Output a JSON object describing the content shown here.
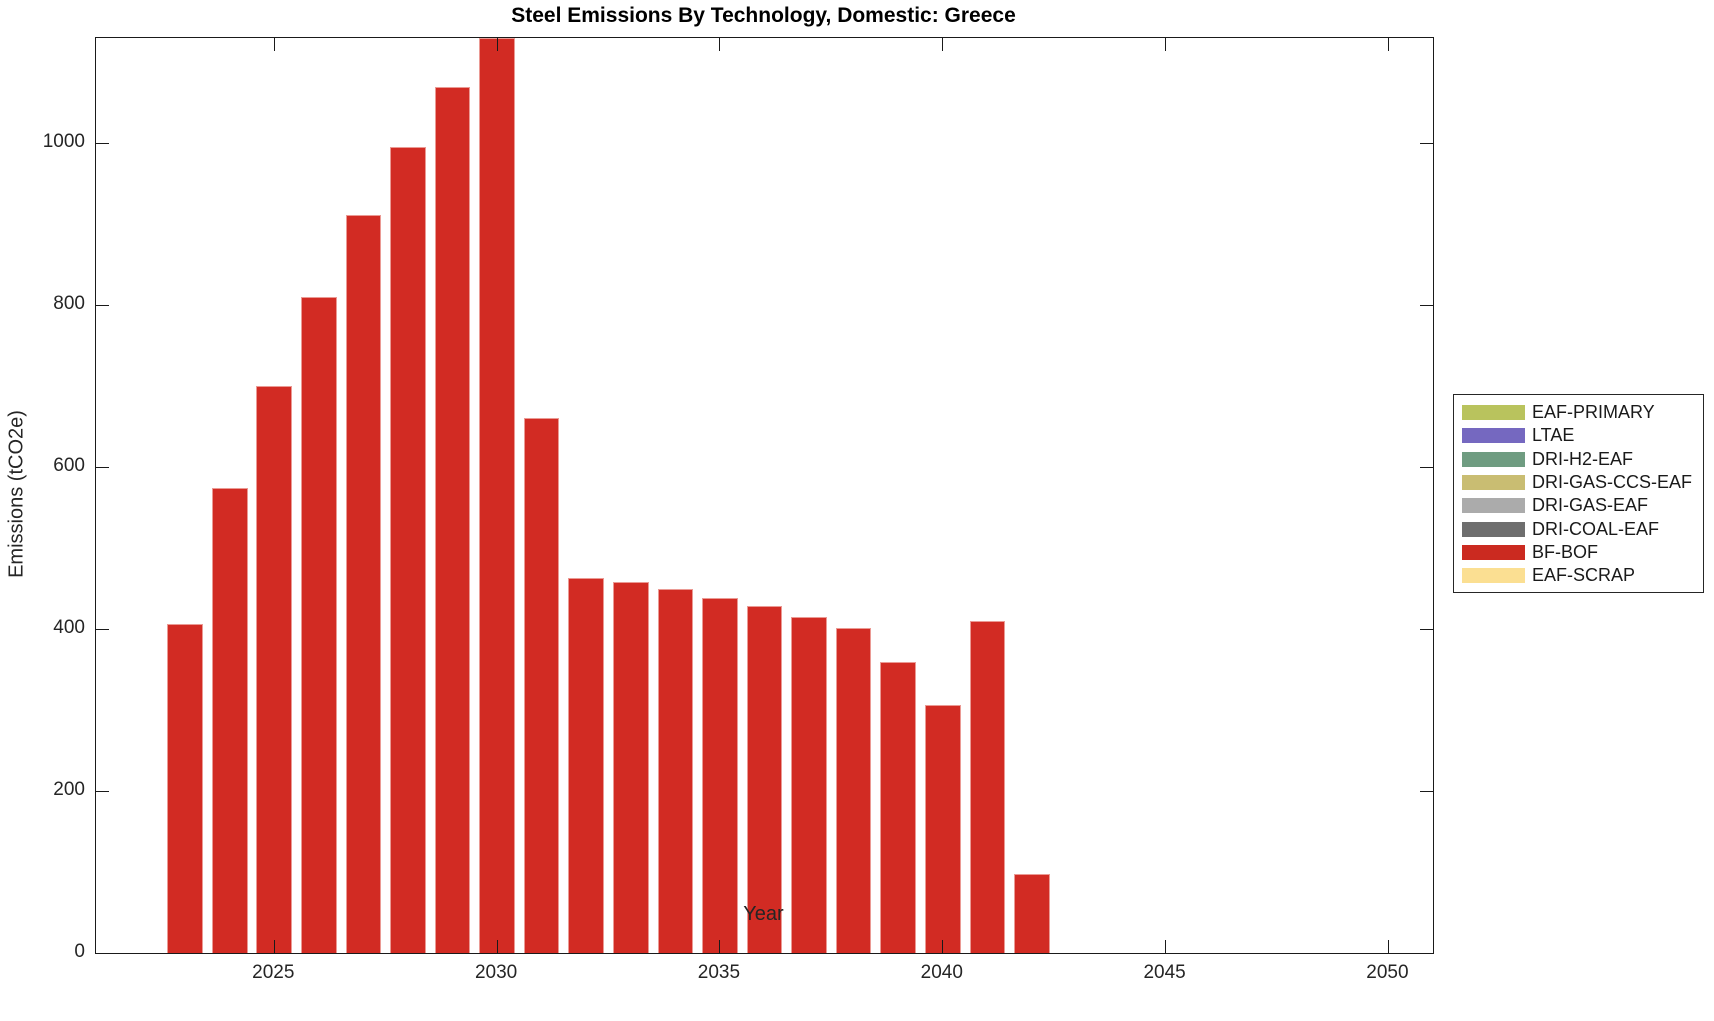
{
  "chart_data": {
    "type": "bar",
    "stacked": true,
    "title": "Steel Emissions By Technology, Domestic: Greece",
    "xlabel": "Year",
    "ylabel": "Emissions (tCO2e)",
    "xlim": [
      2021,
      2051
    ],
    "ylim": [
      0,
      1130
    ],
    "xticks": [
      2025,
      2030,
      2035,
      2040,
      2045,
      2050
    ],
    "yticks": [
      0,
      200,
      400,
      600,
      800,
      1000
    ],
    "grid": false,
    "bar_width_ratio": 0.8,
    "x": [
      2023,
      2024,
      2025,
      2026,
      2027,
      2028,
      2029,
      2030,
      2031,
      2032,
      2033,
      2034,
      2035,
      2036,
      2037,
      2038,
      2039,
      2040,
      2041,
      2042
    ],
    "series": [
      {
        "name": "BF-BOF",
        "color": "#d22b23",
        "values": [
          406,
          574,
          700,
          810,
          912,
          996,
          1070,
          1130,
          661,
          463,
          458,
          450,
          439,
          429,
          415,
          401,
          360,
          306,
          410,
          97
        ]
      }
    ],
    "legend_position": "outside-right",
    "legend_entries": [
      {
        "label": "EAF-PRIMARY",
        "color": "#b9c35d"
      },
      {
        "label": "LTAE",
        "color": "#7568c0"
      },
      {
        "label": "DRI-H2-EAF",
        "color": "#6f9c81"
      },
      {
        "label": "DRI-GAS-CCS-EAF",
        "color": "#c9bd72"
      },
      {
        "label": "DRI-GAS-EAF",
        "color": "#ababab"
      },
      {
        "label": "DRI-COAL-EAF",
        "color": "#6e6e6e"
      },
      {
        "label": "BF-BOF",
        "color": "#cb2a20"
      },
      {
        "label": "EAF-SCRAP",
        "color": "#fbdf92"
      }
    ]
  },
  "colors": {
    "axis": "#1a1a1a",
    "tick_text": "#252525",
    "bar_fill": "#d22b23",
    "background": "#ffffff"
  }
}
